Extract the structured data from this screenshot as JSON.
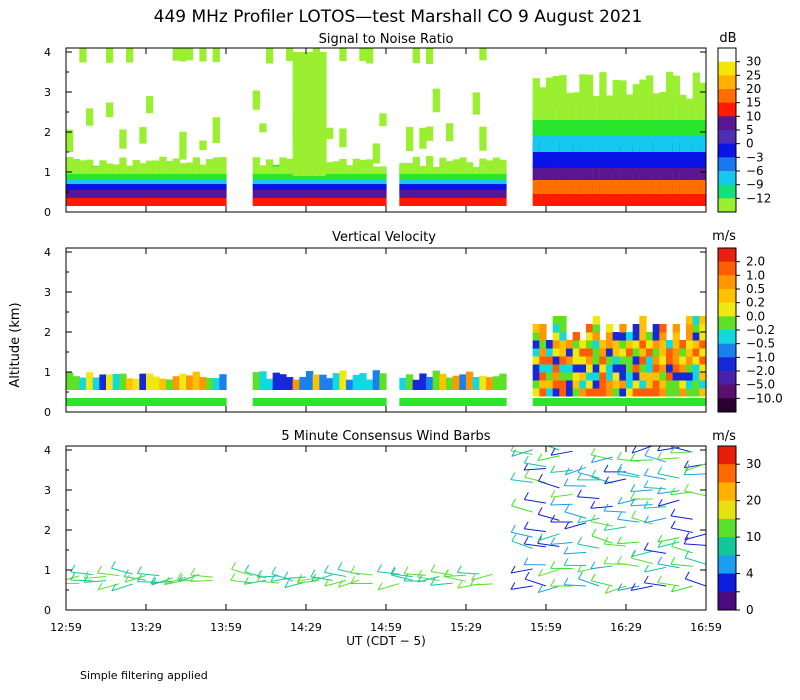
{
  "title": "449 MHz Profiler LOTOS—test Marshall CO  9 August 2021",
  "footnote": "Simple filtering applied",
  "ylabel": "Altitude (km)",
  "xlabel": "UT  (CDT − 5)",
  "x_ticks": [
    "12:59",
    "13:29",
    "13:59",
    "14:29",
    "14:59",
    "15:29",
    "15:59",
    "16:29",
    "16:59"
  ],
  "y_ticks": [
    "0",
    "1",
    "2",
    "3",
    "4"
  ],
  "colors": {
    "palette": [
      "#4a0060",
      "#5a1590",
      "#4d2db4",
      "#0a14e6",
      "#1a78ee",
      "#15c8ee",
      "#12e07a",
      "#2ae62a",
      "#9af030",
      "#f5e60a",
      "#ffb000",
      "#ff6e00",
      "#ff1a00",
      "#ffffff"
    ]
  },
  "chart_data": [
    {
      "type": "heatmap",
      "title": "Signal to Noise Ratio",
      "unit": "dB",
      "colorbar_ticks": [
        "30",
        "25",
        "20",
        "15",
        "10",
        "5",
        "0",
        "−3",
        "−6",
        "−9",
        "−12"
      ],
      "xlim": [
        "12:59",
        "16:59"
      ],
      "ylim": [
        0,
        4.1
      ],
      "data_gaps": [
        [
          "13:58",
          "14:07"
        ],
        [
          "14:59",
          "15:02"
        ],
        [
          "15:43",
          "15:52"
        ]
      ]
    },
    {
      "type": "heatmap",
      "title": "Vertical Velocity",
      "unit": "m/s",
      "colorbar_ticks": [
        "2.0",
        "1.0",
        "0.5",
        "0.2",
        "0.0",
        "−0.2",
        "−0.5",
        "−1.0",
        "−2.0",
        "−5.0",
        "−10.0"
      ],
      "xlim": [
        "12:59",
        "16:59"
      ],
      "ylim": [
        0,
        4.1
      ]
    },
    {
      "type": "scatter",
      "title": "5 Minute Consensus Wind Barbs",
      "unit": "m/s",
      "colorbar_ticks": [
        "30",
        "20",
        "10",
        "4",
        "0"
      ],
      "xlim": [
        "12:59",
        "16:59"
      ],
      "ylim": [
        0,
        4.1
      ]
    }
  ]
}
